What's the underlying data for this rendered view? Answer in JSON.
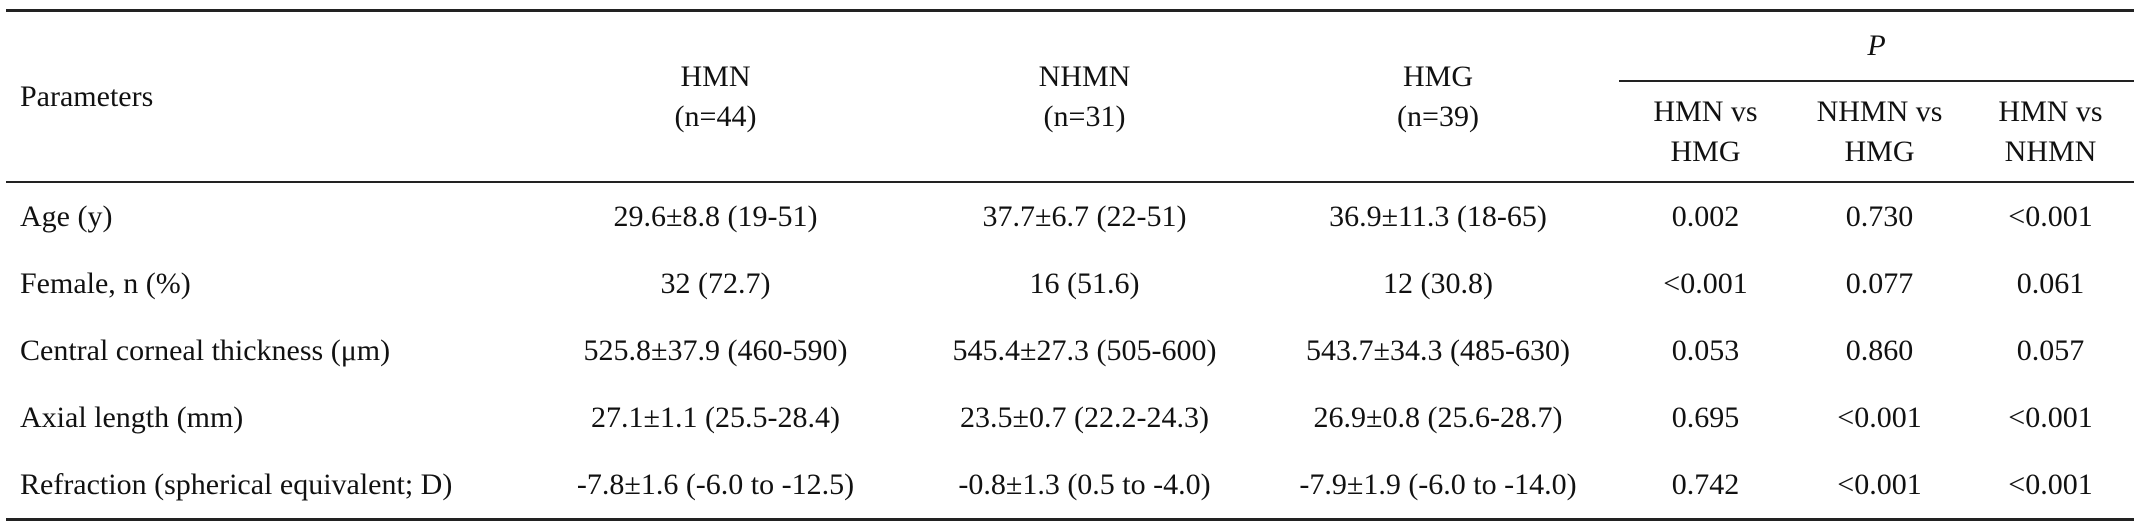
{
  "table": {
    "header": {
      "parameters": "Parameters",
      "groups": [
        [
          "HMN",
          "(n=44)"
        ],
        [
          "NHMN",
          "(n=31)"
        ],
        [
          "HMG",
          "(n=39)"
        ]
      ],
      "p_label": "P",
      "comparisons": [
        [
          "HMN vs",
          "HMG"
        ],
        [
          "NHMN vs",
          "HMG"
        ],
        [
          "HMN vs",
          "NHMN"
        ]
      ]
    },
    "rows": [
      [
        "Age (y)",
        "29.6±8.8 (19-51)",
        "37.7±6.7 (22-51)",
        "36.9±11.3 (18-65)",
        "0.002",
        "0.730",
        "<0.001"
      ],
      [
        "Female, n (%)",
        "32 (72.7)",
        "16 (51.6)",
        "12 (30.8)",
        "<0.001",
        "0.077",
        "0.061"
      ],
      [
        "Central corneal thickness (μm)",
        "525.8±37.9 (460-590)",
        "545.4±27.3 (505-600)",
        "543.7±34.3 (485-630)",
        "0.053",
        "0.860",
        "0.057"
      ],
      [
        "Axial length (mm)",
        "27.1±1.1 (25.5-28.4)",
        "23.5±0.7 (22.2-24.3)",
        "26.9±0.8 (25.6-28.7)",
        "0.695",
        "<0.001",
        "<0.001"
      ],
      [
        "Refraction (spherical equivalent; D)",
        "-7.8±1.6 (-6.0 to -12.5)",
        "-0.8±1.3 (0.5 to -4.0)",
        "-7.9±1.9 (-6.0 to -14.0)",
        "0.742",
        "<0.001",
        "<0.001"
      ]
    ]
  }
}
